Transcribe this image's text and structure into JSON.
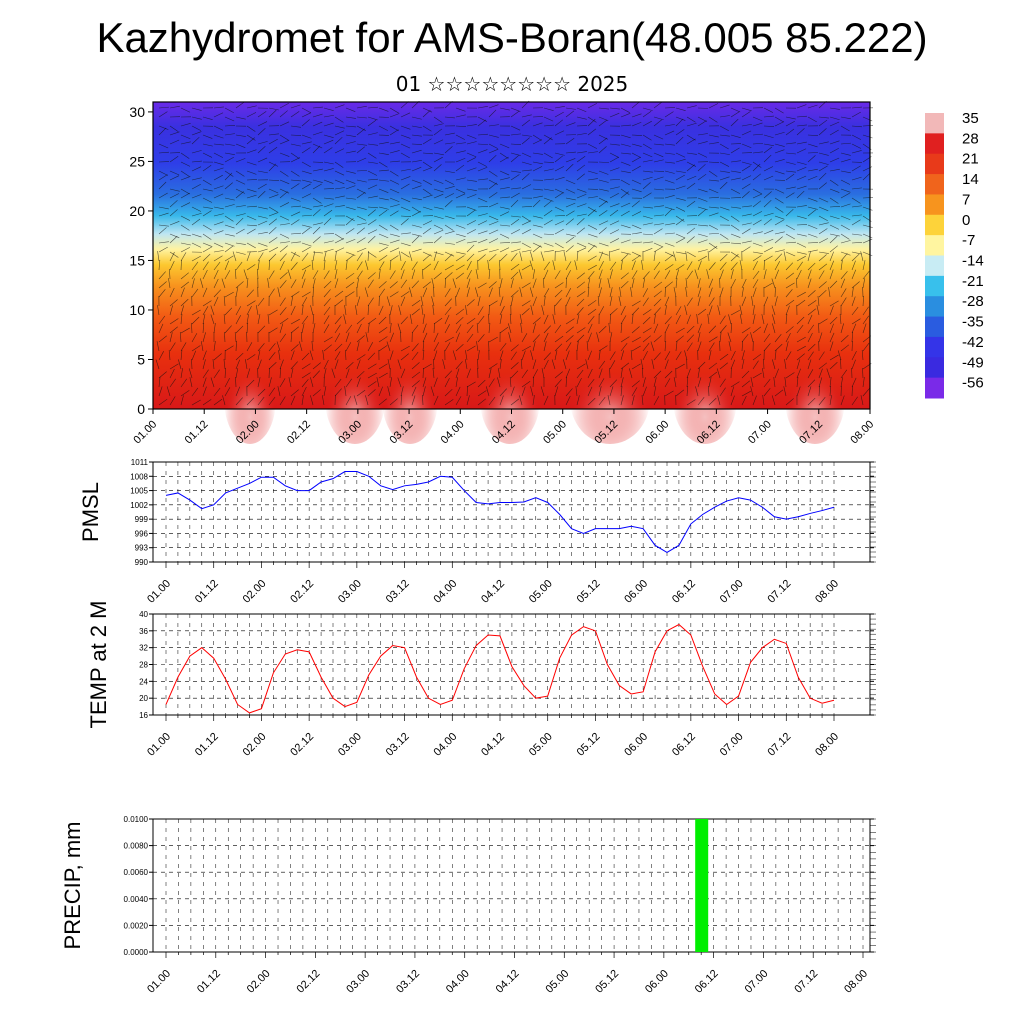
{
  "title": "Kazhydromet for AMS-Boran(48.005 85.222)",
  "subtitle": "01 ☆☆☆☆☆☆☆☆ 2025",
  "time_labels": [
    "01.00",
    "01.12",
    "02.00",
    "02.12",
    "03.00",
    "03.12",
    "04.00",
    "04.12",
    "05.00",
    "05.12",
    "06.00",
    "06.12",
    "07.00",
    "07.12",
    "08.00"
  ],
  "chart_data": [
    {
      "type": "heatmap",
      "title": "",
      "description_of_field": "temperature cross-section with wind barbs",
      "y_ticks": [
        0,
        5,
        10,
        15,
        20,
        25,
        30
      ],
      "ylim": [
        0,
        31
      ],
      "colorbar": {
        "labels": [
          "35",
          "28",
          "21",
          "14",
          "7",
          "0",
          "-7",
          "-14",
          "-21",
          "-28",
          "-35",
          "-42",
          "-49",
          "-56"
        ],
        "values": [
          35,
          28,
          21,
          14,
          7,
          0,
          -7,
          -14,
          -21,
          -28,
          -35,
          -42,
          -49,
          -56
        ],
        "colors": [
          "#f2b8b8",
          "#e02020",
          "#e83a1a",
          "#f0641c",
          "#f7941e",
          "#fdd33a",
          "#fff5a0",
          "#c8ecf4",
          "#38c0ec",
          "#2a8ee0",
          "#2a5ce0",
          "#3434e8",
          "#3a2ae0",
          "#7a2ae8"
        ]
      }
    },
    {
      "type": "line",
      "ylabel": "PMSL",
      "y_ticks": [
        990,
        993,
        996,
        999,
        1002,
        1005,
        1008,
        1011
      ],
      "ylim": [
        990,
        1011
      ],
      "color": "#0000ff",
      "x": [
        0,
        3,
        6,
        9,
        12,
        15,
        18,
        21,
        24,
        27,
        30,
        33,
        36,
        39,
        42,
        45,
        48,
        51,
        54,
        57,
        60,
        63,
        66,
        69,
        72,
        75,
        78,
        81,
        84,
        87,
        90,
        93,
        96,
        99,
        102,
        105,
        108,
        111,
        114,
        117,
        120,
        123,
        126,
        129,
        132,
        135,
        138,
        141,
        144,
        147,
        150,
        153,
        156,
        159,
        162,
        165,
        168
      ],
      "values": [
        1004,
        1004.5,
        1003,
        1001.2,
        1002,
        1004.5,
        1005.5,
        1006.5,
        1007.8,
        1007.8,
        1006,
        1005,
        1005,
        1006.8,
        1007.5,
        1009,
        1009,
        1008,
        1006,
        1005.2,
        1006,
        1006.3,
        1006.8,
        1008,
        1007.8,
        1005,
        1002.5,
        1002.2,
        1002.5,
        1002.5,
        1002.6,
        1003.5,
        1002.5,
        1000,
        997,
        996,
        997,
        997,
        997,
        997.5,
        997,
        993.5,
        992,
        993.5,
        998,
        1000,
        1001.5,
        1002.8,
        1003.5,
        1003,
        1001.5,
        999.5,
        999,
        999.5,
        1000.2,
        1000.8,
        1001.5
      ]
    },
    {
      "type": "line",
      "ylabel": "TEMP at 2 M",
      "y_ticks": [
        16,
        20,
        24,
        28,
        32,
        36,
        40
      ],
      "ylim": [
        16,
        40
      ],
      "color": "#ff0000",
      "x": [
        0,
        3,
        6,
        9,
        12,
        15,
        18,
        21,
        24,
        27,
        30,
        33,
        36,
        39,
        42,
        45,
        48,
        51,
        54,
        57,
        60,
        63,
        66,
        69,
        72,
        75,
        78,
        81,
        84,
        87,
        90,
        93,
        96,
        99,
        102,
        105,
        108,
        111,
        114,
        117,
        120,
        123,
        126,
        129,
        132,
        135,
        138,
        141,
        144,
        147,
        150,
        153,
        156,
        159,
        162,
        165,
        168
      ],
      "values": [
        18.5,
        25,
        30,
        32,
        29.5,
        24.5,
        18.5,
        16.5,
        17.5,
        26,
        30.5,
        31.5,
        31,
        25,
        20,
        18,
        19,
        25.5,
        30,
        32.5,
        32,
        25,
        20,
        18.5,
        19.5,
        27,
        32.5,
        35,
        34.8,
        27.5,
        23,
        20,
        20.5,
        29.5,
        35,
        37,
        36,
        28,
        23,
        21,
        21.5,
        31,
        36,
        37.5,
        35,
        27.5,
        21,
        18.5,
        20.5,
        28.5,
        32,
        34,
        33,
        25,
        20,
        18.8,
        19.5
      ]
    },
    {
      "type": "bar",
      "ylabel": "PRECIP, mm",
      "y_ticks": [
        0.0,
        0.002,
        0.004,
        0.006,
        0.008,
        0.01
      ],
      "y_tick_labels": [
        "0.0000",
        "0.0020",
        "0.0040",
        "0.0060",
        "0.0080",
        "0.0100"
      ],
      "ylim": [
        0,
        0.01
      ],
      "color": "#00ee00",
      "bars": [
        {
          "x": 129,
          "value": 0.01
        }
      ]
    }
  ]
}
